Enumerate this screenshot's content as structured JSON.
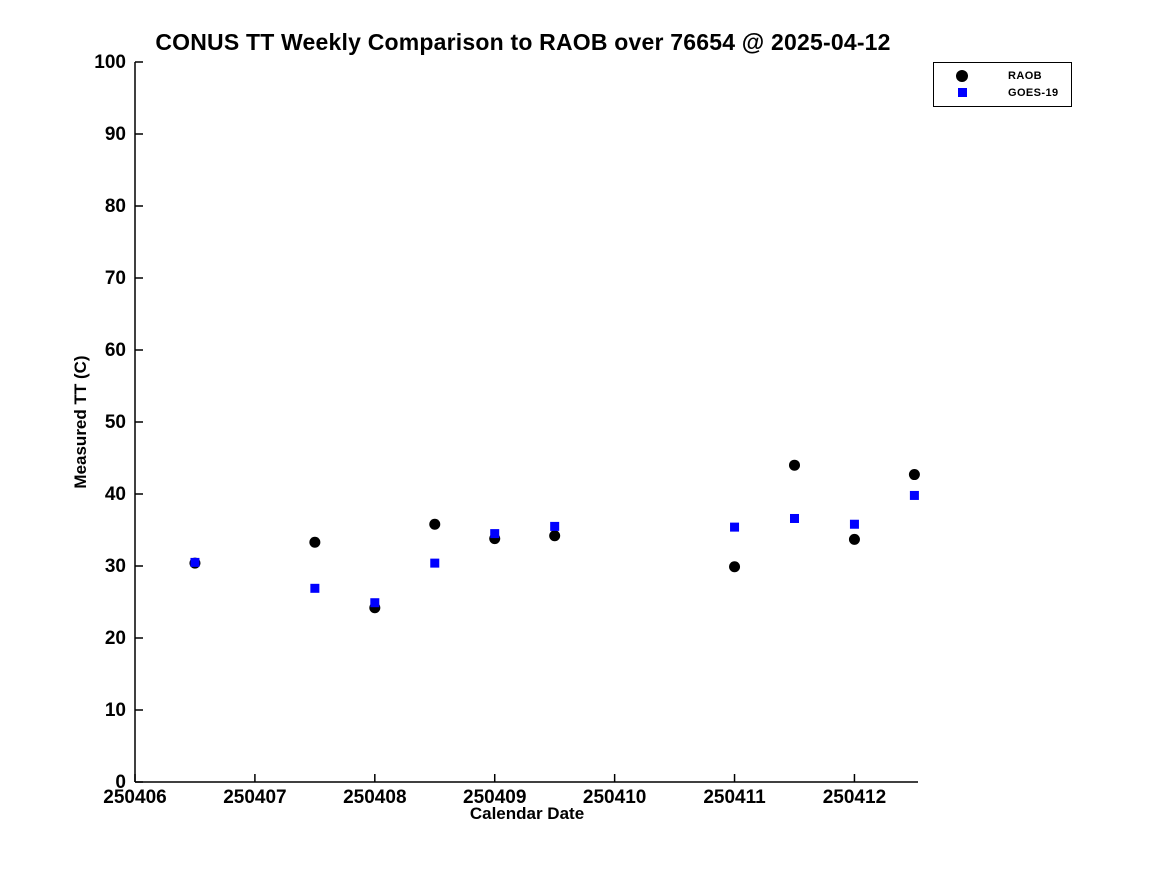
{
  "chart_data": {
    "type": "scatter",
    "title": "CONUS TT Weekly Comparison to RAOB over 76654 @ 2025-04-12",
    "xlabel": "Calendar Date",
    "ylabel": "Measured TT (C)",
    "xlim": [
      250406,
      250412.53
    ],
    "ylim": [
      0,
      100
    ],
    "x_ticks": [
      250406,
      250407,
      250408,
      250409,
      250410,
      250411,
      250412
    ],
    "y_ticks": [
      0,
      10,
      20,
      30,
      40,
      50,
      60,
      70,
      80,
      90,
      100
    ],
    "grid": false,
    "legend_position": "top-right",
    "series": [
      {
        "name": "RAOB",
        "marker": "circle",
        "color": "#000000",
        "x": [
          250406.5,
          250407.5,
          250408.0,
          250408.5,
          250409.0,
          250409.5,
          250411.0,
          250411.5,
          250412.0,
          250412.5
        ],
        "y": [
          30.4,
          33.3,
          24.2,
          35.8,
          33.8,
          34.2,
          29.9,
          44.0,
          33.7,
          42.7
        ]
      },
      {
        "name": "GOES-19",
        "marker": "square",
        "color": "#0000ff",
        "x": [
          250406.5,
          250407.5,
          250408.0,
          250408.5,
          250409.0,
          250409.5,
          250411.0,
          250411.5,
          250412.0,
          250412.5
        ],
        "y": [
          30.5,
          26.9,
          24.9,
          30.4,
          34.5,
          35.5,
          35.4,
          36.6,
          35.8,
          39.8
        ]
      }
    ]
  }
}
